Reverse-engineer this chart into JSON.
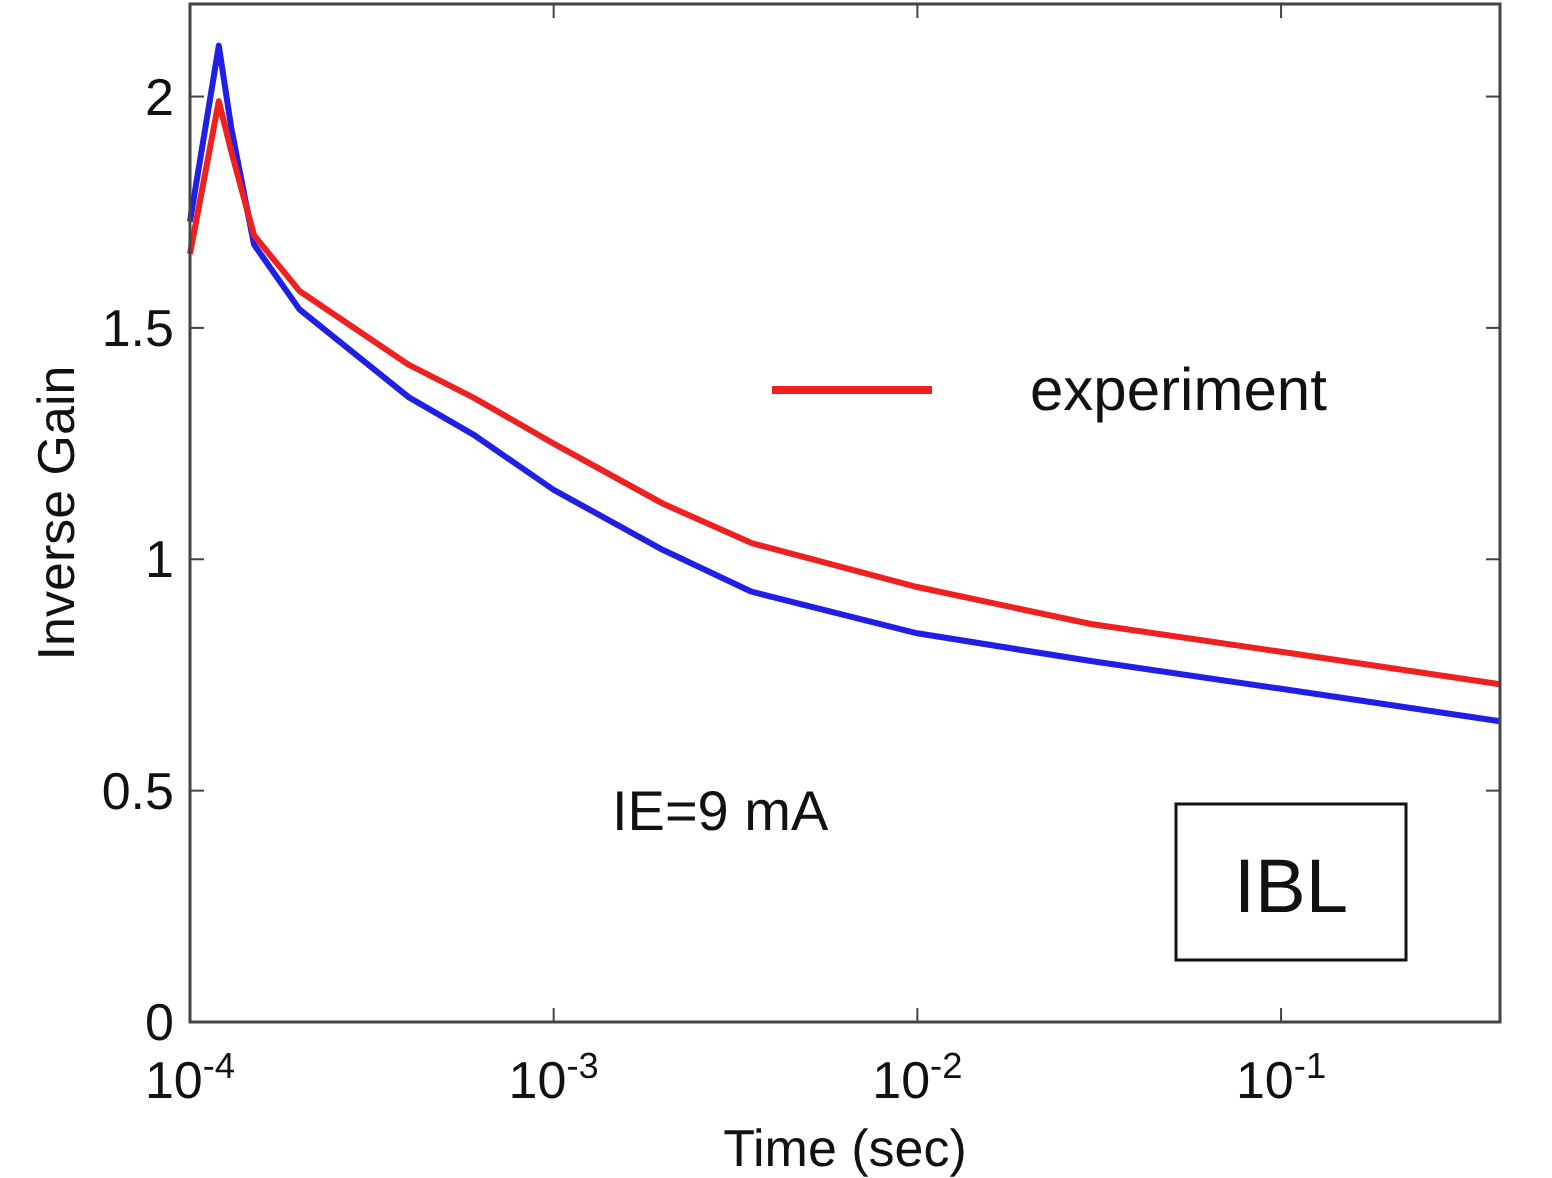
{
  "chart_data": {
    "type": "line",
    "xlabel": "Time (sec)",
    "ylabel": "Inverse Gain",
    "log": "x",
    "xlim": [
      0.0001,
      0.4
    ],
    "ylim": [
      0,
      2.2
    ],
    "xticks": [
      {
        "value": 0.0001,
        "label": "10$^{-4}$"
      },
      {
        "value": 0.001,
        "label": "10$^{-3}$"
      },
      {
        "value": 0.01,
        "label": "10$^{-2}$"
      },
      {
        "value": 0.1,
        "label": "10$^{-1}$"
      }
    ],
    "yticks": [
      0,
      0.5,
      1,
      1.5,
      2
    ],
    "grid": false,
    "legend": "top right",
    "line_style": "solid",
    "annotations": [
      "IE=9 mA",
      "IBL"
    ],
    "series": [
      {
        "color": "#1f1fe6",
        "x": [
          0.0001,
          0.00012,
          0.00013,
          0.00015,
          0.0002,
          0.0004,
          0.0006,
          0.001,
          0.002,
          0.0035,
          0.01,
          0.03,
          0.1,
          0.4
        ],
        "values": [
          1.73,
          2.11,
          1.93,
          1.68,
          1.54,
          1.35,
          1.27,
          1.15,
          1.02,
          0.93,
          0.84,
          0.78,
          0.72,
          0.65
        ]
      },
      {
        "name": "experiment",
        "color": "#ee2020",
        "x": [
          0.0001,
          0.00012,
          0.00013,
          0.00015,
          0.0002,
          0.0004,
          0.0006,
          0.001,
          0.002,
          0.0035,
          0.01,
          0.03,
          0.1,
          0.4
        ],
        "values": [
          1.66,
          1.99,
          1.88,
          1.7,
          1.58,
          1.42,
          1.35,
          1.25,
          1.12,
          1.035,
          0.94,
          0.86,
          0.8,
          0.73
        ]
      }
    ]
  }
}
